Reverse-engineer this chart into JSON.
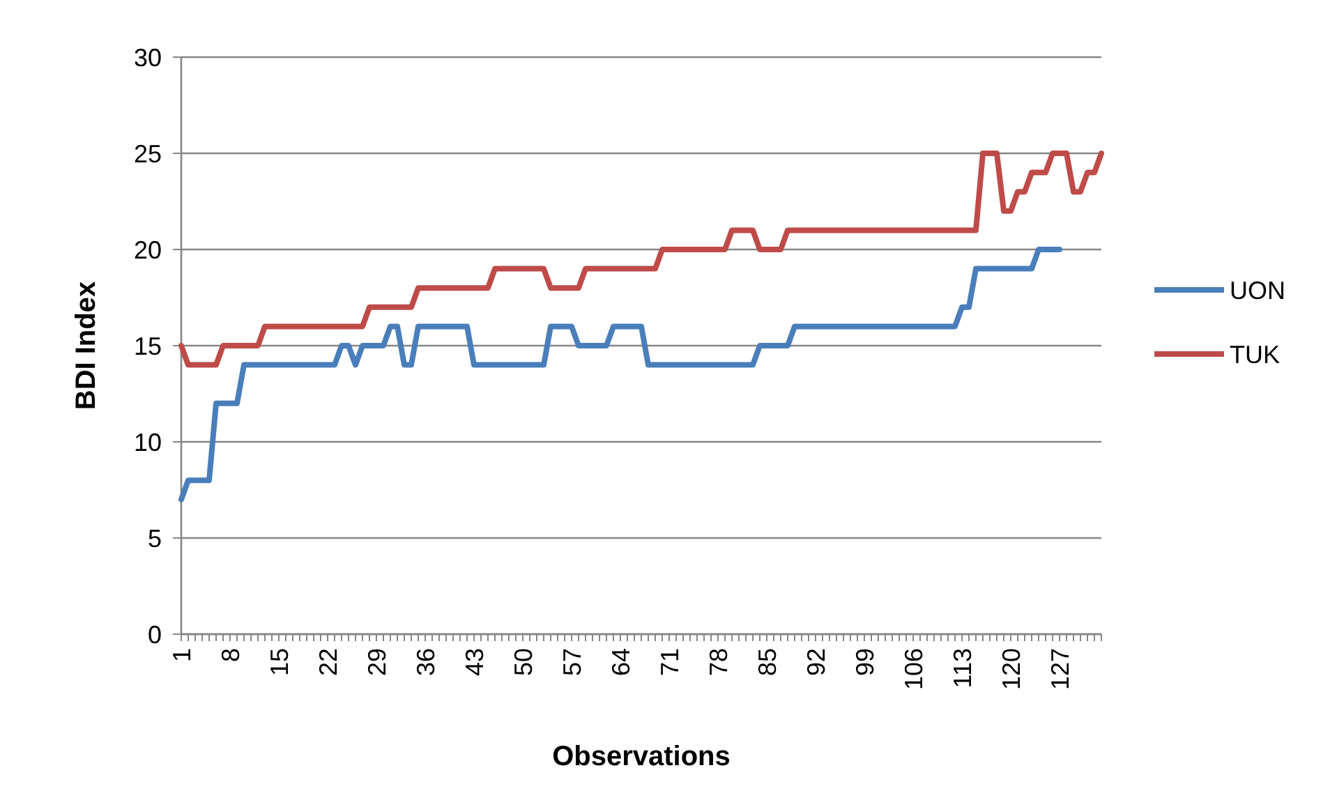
{
  "chart_data": {
    "type": "line",
    "xlabel": "Observations",
    "ylabel": "BDI Index",
    "x": [
      1,
      2,
      3,
      4,
      5,
      6,
      7,
      8,
      9,
      10,
      11,
      12,
      13,
      14,
      15,
      16,
      17,
      18,
      19,
      20,
      21,
      22,
      23,
      24,
      25,
      26,
      27,
      28,
      29,
      30,
      31,
      32,
      33,
      34,
      35,
      36,
      37,
      38,
      39,
      40,
      41,
      42,
      43,
      44,
      45,
      46,
      47,
      48,
      49,
      50,
      51,
      52,
      53,
      54,
      55,
      56,
      57,
      58,
      59,
      60,
      61,
      62,
      63,
      64,
      65,
      66,
      67,
      68,
      69,
      70,
      71,
      72,
      73,
      74,
      75,
      76,
      77,
      78,
      79,
      80,
      81,
      82,
      83,
      84,
      85,
      86,
      87,
      88,
      89,
      90,
      91,
      92,
      93,
      94,
      95,
      96,
      97,
      98,
      99,
      100,
      101,
      102,
      103,
      104,
      105,
      106,
      107,
      108,
      109,
      110,
      111,
      112,
      113,
      114,
      115,
      116,
      117,
      118,
      119,
      120,
      121,
      122,
      123,
      124,
      125,
      126,
      127,
      128,
      129,
      130,
      131,
      132,
      133
    ],
    "series": [
      {
        "name": "UON",
        "color": "#4a7ebb",
        "values": [
          7,
          8,
          8,
          8,
          8,
          12,
          12,
          12,
          12,
          14,
          14,
          14,
          14,
          14,
          14,
          14,
          14,
          14,
          14,
          14,
          14,
          14,
          14,
          15,
          15,
          14,
          15,
          15,
          15,
          15,
          16,
          16,
          14,
          14,
          16,
          16,
          16,
          16,
          16,
          16,
          16,
          16,
          14,
          14,
          14,
          14,
          14,
          14,
          14,
          14,
          14,
          14,
          14,
          16,
          16,
          16,
          16,
          15,
          15,
          15,
          15,
          15,
          16,
          16,
          16,
          16,
          16,
          14,
          14,
          14,
          14,
          14,
          14,
          14,
          14,
          14,
          14,
          14,
          14,
          14,
          14,
          14,
          14,
          15,
          15,
          15,
          15,
          15,
          16,
          16,
          16,
          16,
          16,
          16,
          16,
          16,
          16,
          16,
          16,
          16,
          16,
          16,
          16,
          16,
          16,
          16,
          16,
          16,
          16,
          16,
          16,
          16,
          17,
          17,
          19,
          19,
          19,
          19,
          19,
          19,
          19,
          19,
          19,
          20,
          20,
          20,
          20,
          null,
          null,
          null,
          null,
          null,
          null
        ]
      },
      {
        "name": "TUK",
        "color": "#be4b48",
        "values": [
          15,
          14,
          14,
          14,
          14,
          14,
          15,
          15,
          15,
          15,
          15,
          15,
          16,
          16,
          16,
          16,
          16,
          16,
          16,
          16,
          16,
          16,
          16,
          16,
          16,
          16,
          16,
          17,
          17,
          17,
          17,
          17,
          17,
          17,
          18,
          18,
          18,
          18,
          18,
          18,
          18,
          18,
          18,
          18,
          18,
          19,
          19,
          19,
          19,
          19,
          19,
          19,
          19,
          18,
          18,
          18,
          18,
          18,
          19,
          19,
          19,
          19,
          19,
          19,
          19,
          19,
          19,
          19,
          19,
          20,
          20,
          20,
          20,
          20,
          20,
          20,
          20,
          20,
          20,
          21,
          21,
          21,
          21,
          20,
          20,
          20,
          20,
          21,
          21,
          21,
          21,
          21,
          21,
          21,
          21,
          21,
          21,
          21,
          21,
          21,
          21,
          21,
          21,
          21,
          21,
          21,
          21,
          21,
          21,
          21,
          21,
          21,
          21,
          21,
          21,
          25,
          25,
          25,
          22,
          22,
          23,
          23,
          24,
          24,
          24,
          25,
          25,
          25,
          23,
          23,
          24,
          24,
          25
        ]
      }
    ],
    "xlim": [
      1,
      133
    ],
    "xticks": [
      1,
      8,
      15,
      22,
      29,
      36,
      43,
      50,
      57,
      64,
      71,
      78,
      85,
      92,
      99,
      106,
      113,
      120,
      127
    ],
    "ylim": [
      0,
      30
    ],
    "yticks": [
      0,
      5,
      10,
      15,
      20,
      25,
      30
    ],
    "grid": "y",
    "legend": "right",
    "line_style": "solid",
    "marker": "none"
  }
}
